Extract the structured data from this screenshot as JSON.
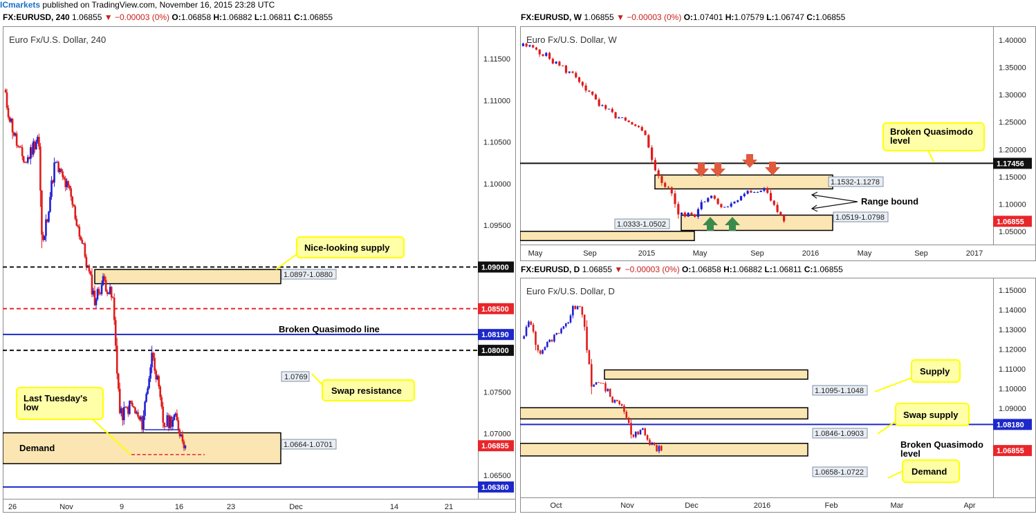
{
  "publisher": {
    "name": "ICmarkets",
    "text": "published on TradingView.com, November 16, 2015 23:28 UTC"
  },
  "colors": {
    "bull": "#1f1fd6",
    "bear": "#e01b1b",
    "zone": "#fbe6b3",
    "callout": "#ffffa8",
    "calloutBorder": "#ffff00",
    "priceRed": "#e8262a",
    "black": "#111111",
    "blue": "#1c28c9",
    "arrowRed": "#e05a3e",
    "arrowGreen": "#3a8a4e"
  },
  "charts": [
    {
      "id": "h4",
      "header": {
        "symbol": "FX:EURUSD, 240",
        "last": "1.06855",
        "change": "▼ −0.00003 (0%)",
        "o": "1.06858",
        "h": "1.06882",
        "l": "1.06811",
        "c": "1.06855"
      },
      "title": "Euro Fx/U.S. Dollar, 240",
      "y_ticks": [
        {
          "v": 1.115,
          "t": "1.11500"
        },
        {
          "v": 1.11,
          "t": "1.11000"
        },
        {
          "v": 1.105,
          "t": "1.10500"
        },
        {
          "v": 1.1,
          "t": "1.10000"
        },
        {
          "v": 1.095,
          "t": "1.09500"
        },
        {
          "v": 1.075,
          "t": "1.07500"
        },
        {
          "v": 1.07,
          "t": "1.07000"
        },
        {
          "v": 1.065,
          "t": "1.06500"
        }
      ],
      "x_ticks": [
        "26",
        "Nov",
        "9",
        "16",
        "23",
        "Dec",
        "14",
        "21"
      ],
      "levels": [
        {
          "label": "1.09000",
          "v": 1.09,
          "style": "black-dash"
        },
        {
          "label": "1.08500",
          "v": 1.085,
          "style": "red-dash"
        },
        {
          "label": "1.08190",
          "v": 1.0819,
          "style": "blue"
        },
        {
          "label": "1.08000",
          "v": 1.08,
          "style": "black-dash"
        },
        {
          "label": "1.06360",
          "v": 1.0636,
          "style": "blue"
        }
      ],
      "price_label": "1.06855",
      "zones": [
        {
          "label": "1.0897-1.0880",
          "top": 1.0897,
          "bottom": 1.088
        },
        {
          "label": "1.0664-1.0701",
          "top": 1.0701,
          "bottom": 1.0664
        }
      ],
      "swap_label": "1.0769",
      "annotations": {
        "supply": "Nice-looking supply",
        "bql": "Broken Quasimodo line",
        "swap": "Swap resistance",
        "lastlow": "Last Tuesday's low",
        "demand": "Demand"
      }
    },
    {
      "id": "w",
      "header": {
        "symbol": "FX:EURUSD, W",
        "last": "1.06855",
        "change": "▼ −0.00003 (0%)",
        "o": "1.07401",
        "h": "1.07579",
        "l": "1.06747",
        "c": "1.06855"
      },
      "title": "Euro Fx/U.S. Dollar, W",
      "y_ticks": [
        {
          "v": 1.4,
          "t": "1.40000"
        },
        {
          "v": 1.35,
          "t": "1.35000"
        },
        {
          "v": 1.3,
          "t": "1.30000"
        },
        {
          "v": 1.25,
          "t": "1.25000"
        },
        {
          "v": 1.2,
          "t": "1.20000"
        },
        {
          "v": 1.15,
          "t": "1.15000"
        },
        {
          "v": 1.1,
          "t": "1.10000"
        },
        {
          "v": 1.05,
          "t": "1.05000"
        }
      ],
      "x_ticks": [
        "May",
        "Sep",
        "2015",
        "May",
        "Sep",
        "2016",
        "May",
        "Sep",
        "2017"
      ],
      "levels": [
        {
          "label": "1.17456",
          "v": 1.17456,
          "style": "black"
        }
      ],
      "price_label": "1.06855",
      "zones": [
        {
          "label": "1.1532-1.1278",
          "top": 1.1532,
          "bottom": 1.1278
        },
        {
          "label": "1.0519-1.0798",
          "top": 1.0798,
          "bottom": 1.0519
        },
        {
          "label": "1.0333-1.0502",
          "top": 1.0502,
          "bottom": 1.0333
        }
      ],
      "annotations": {
        "bql": "Broken Quasimodo level",
        "range": "Range bound"
      }
    },
    {
      "id": "d",
      "header": {
        "symbol": "FX:EURUSD, D",
        "last": "1.06855",
        "change": "▼ −0.00003 (0%)",
        "o": "1.06858",
        "h": "1.06882",
        "l": "1.06811",
        "c": "1.06855"
      },
      "title": "Euro Fx/U.S. Dollar, D",
      "y_ticks": [
        {
          "v": 1.15,
          "t": "1.15000"
        },
        {
          "v": 1.14,
          "t": "1.14000"
        },
        {
          "v": 1.13,
          "t": "1.13000"
        },
        {
          "v": 1.12,
          "t": "1.12000"
        },
        {
          "v": 1.11,
          "t": "1.11000"
        },
        {
          "v": 1.1,
          "t": "1.10000"
        },
        {
          "v": 1.09,
          "t": "1.09000"
        }
      ],
      "x_ticks": [
        "Oct",
        "Nov",
        "Dec",
        "2016",
        "Feb",
        "Mar",
        "Apr"
      ],
      "levels": [
        {
          "label": "1.08180",
          "v": 1.0818,
          "style": "blue"
        }
      ],
      "price_label": "1.06855",
      "zones": [
        {
          "label": "1.1095-1.1048",
          "top": 1.1095,
          "bottom": 1.1048
        },
        {
          "label": "1.0846-1.0903",
          "top": 1.0903,
          "bottom": 1.0846
        },
        {
          "label": "1.0658-1.0722",
          "top": 1.0722,
          "bottom": 1.0658
        }
      ],
      "annotations": {
        "supply": "Supply",
        "swap": "Swap supply",
        "bql": "Broken Quasimodo level",
        "demand": "Demand"
      }
    }
  ]
}
